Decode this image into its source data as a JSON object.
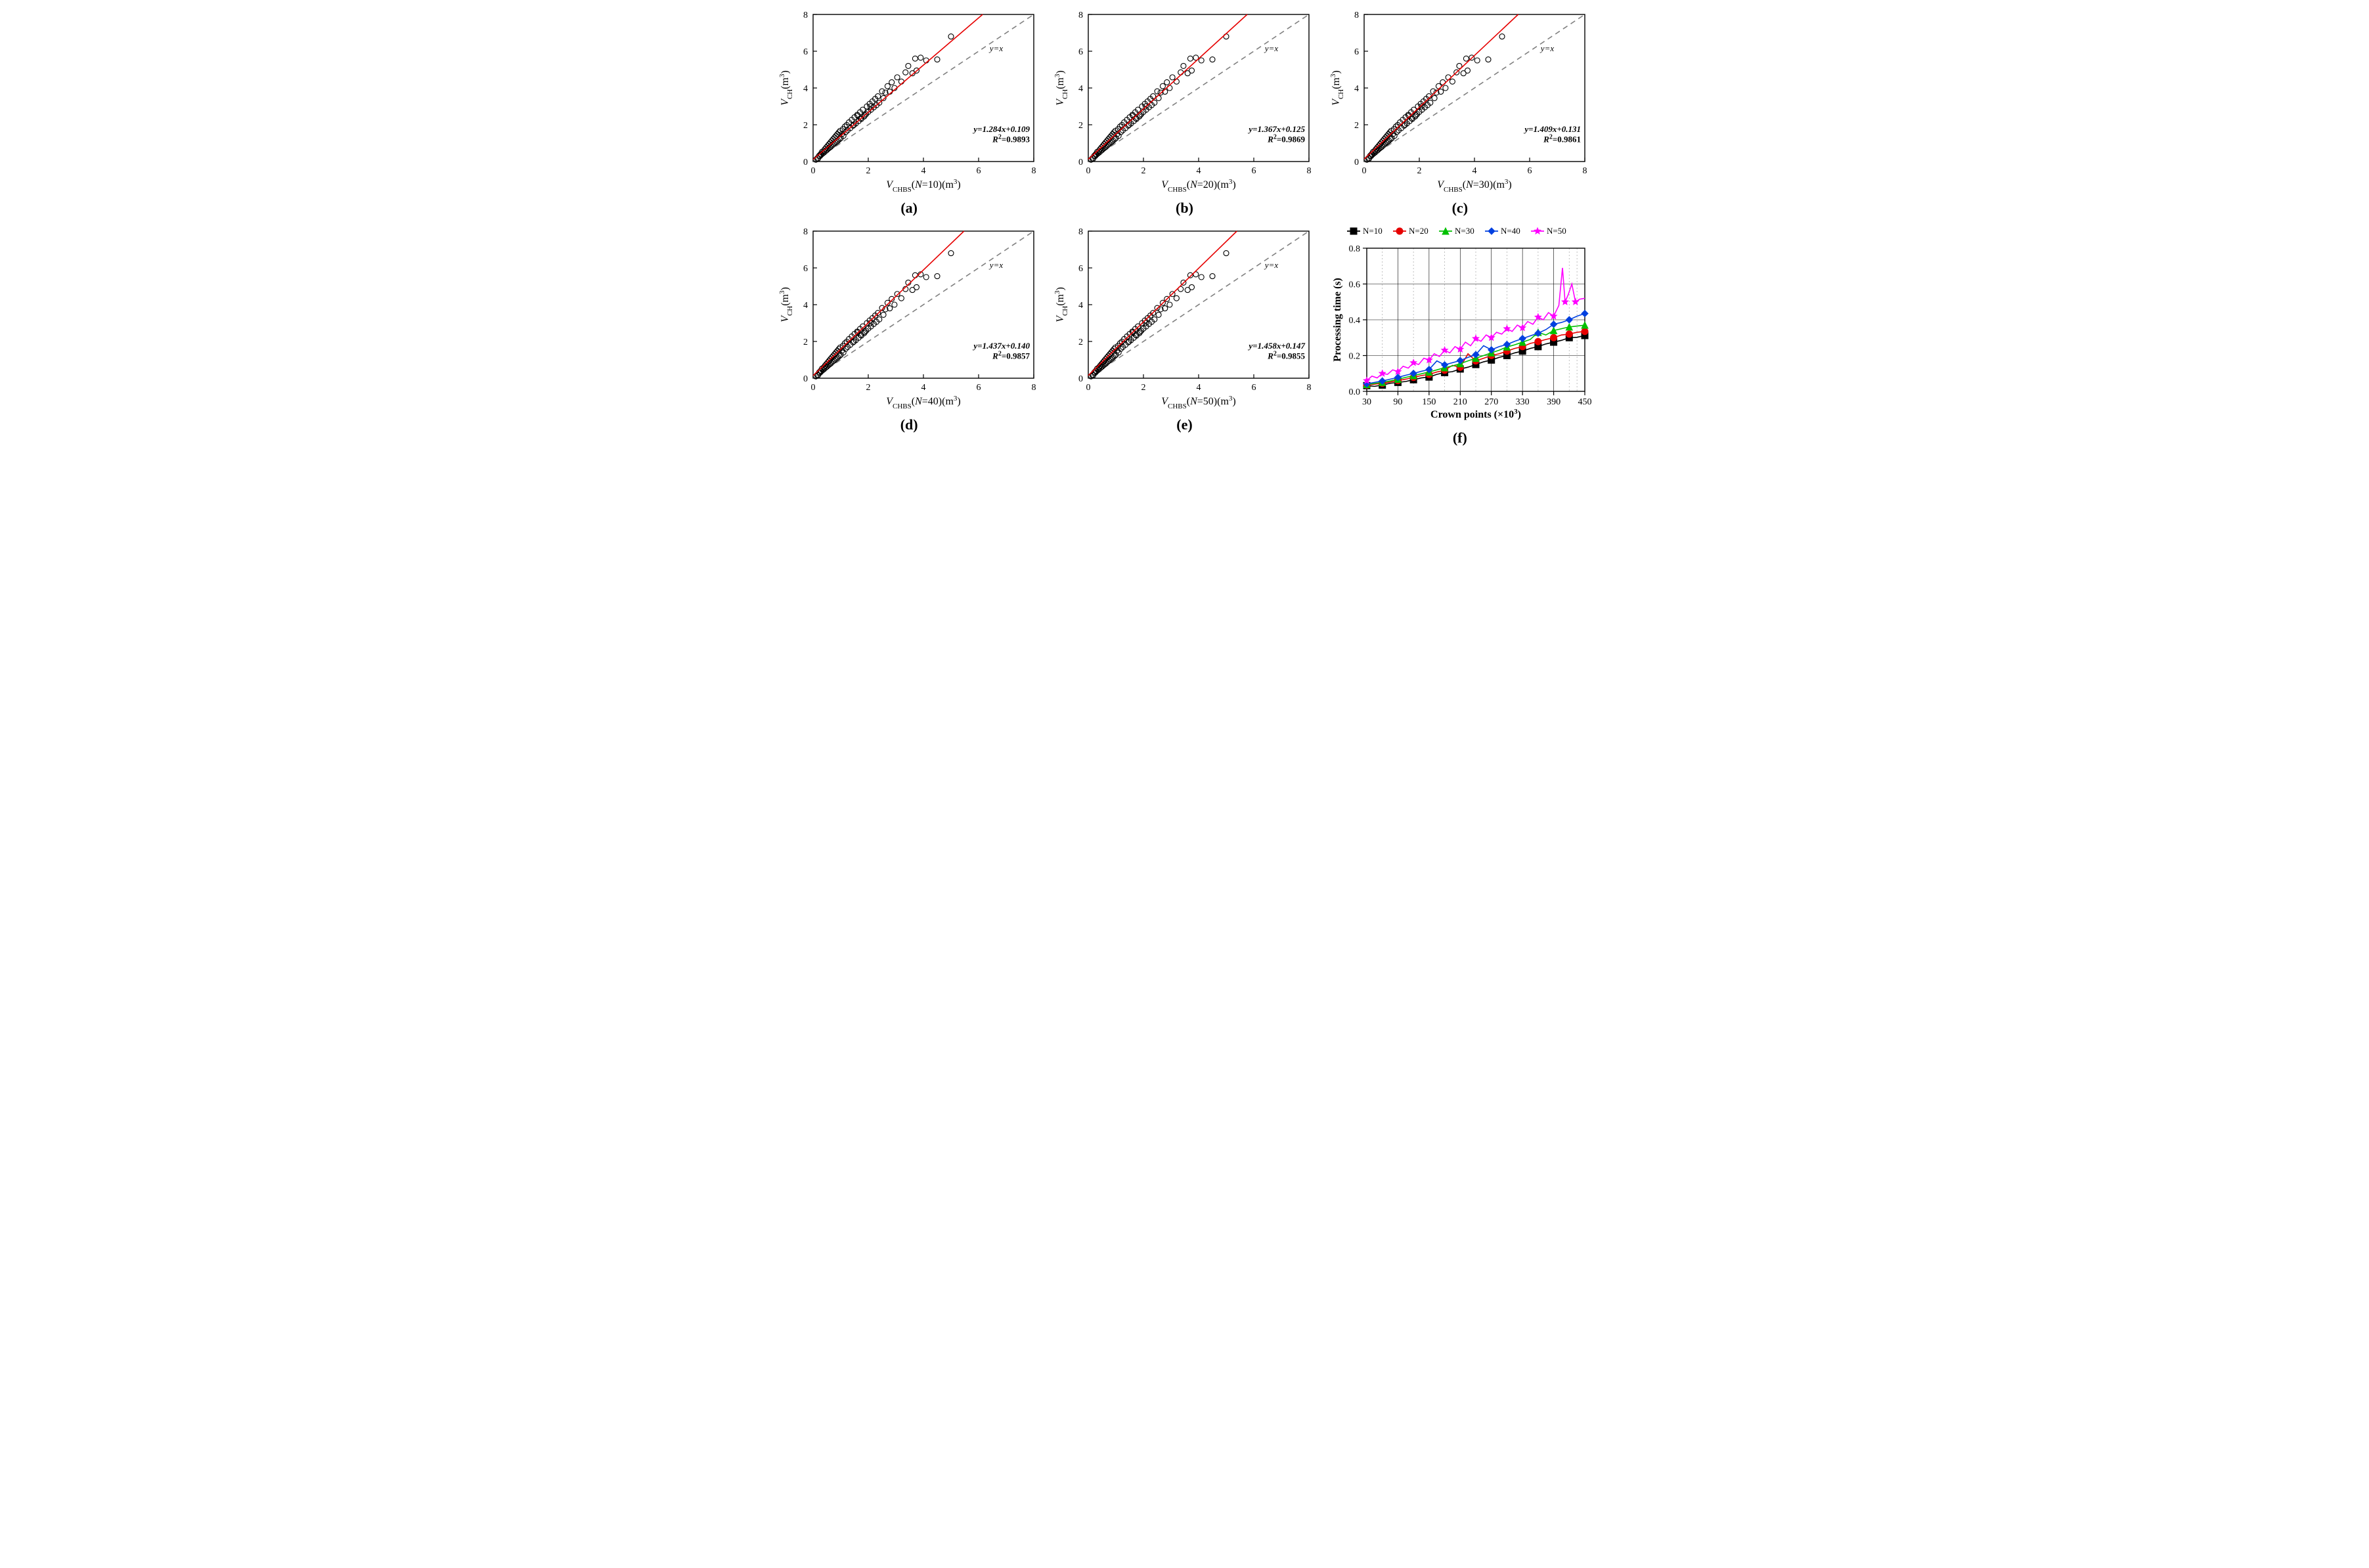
{
  "background_color": "#ffffff",
  "font_family": "Palatino Linotype",
  "scatter_panels": {
    "common": {
      "type": "scatter",
      "xlim": [
        0,
        8
      ],
      "ylim": [
        0,
        8
      ],
      "xtick_step": 2,
      "ytick_step": 2,
      "ylabel": "V_CH (m^3)",
      "diag_label": "y=x",
      "diag_color": "#808080",
      "diag_dash": "8 6",
      "fit_color": "#e60000",
      "marker_style": "open-circle",
      "marker_size": 4.0,
      "marker_stroke": "#000000",
      "axis_tick_fontsize": 14,
      "axis_title_fontsize": 16,
      "annot_fontsize": 13,
      "points": [
        [
          0.1,
          0.1
        ],
        [
          0.15,
          0.18
        ],
        [
          0.18,
          0.16
        ],
        [
          0.22,
          0.32
        ],
        [
          0.25,
          0.3
        ],
        [
          0.27,
          0.4
        ],
        [
          0.3,
          0.38
        ],
        [
          0.32,
          0.52
        ],
        [
          0.35,
          0.44
        ],
        [
          0.38,
          0.58
        ],
        [
          0.4,
          0.5
        ],
        [
          0.43,
          0.68
        ],
        [
          0.45,
          0.57
        ],
        [
          0.48,
          0.77
        ],
        [
          0.5,
          0.63
        ],
        [
          0.53,
          0.86
        ],
        [
          0.55,
          0.7
        ],
        [
          0.58,
          0.95
        ],
        [
          0.6,
          0.76
        ],
        [
          0.63,
          1.04
        ],
        [
          0.65,
          0.82
        ],
        [
          0.68,
          1.13
        ],
        [
          0.7,
          0.89
        ],
        [
          0.73,
          1.22
        ],
        [
          0.75,
          0.95
        ],
        [
          0.78,
          1.31
        ],
        [
          0.8,
          1.02
        ],
        [
          0.83,
          1.4
        ],
        [
          0.85,
          1.08
        ],
        [
          0.88,
          1.49
        ],
        [
          0.9,
          1.14
        ],
        [
          0.93,
          1.58
        ],
        [
          0.95,
          1.21
        ],
        [
          0.98,
          1.67
        ],
        [
          1.0,
          1.27
        ],
        [
          1.05,
          1.5
        ],
        [
          1.08,
          1.76
        ],
        [
          1.1,
          1.4
        ],
        [
          1.15,
          1.9
        ],
        [
          1.18,
          1.6
        ],
        [
          1.22,
          1.99
        ],
        [
          1.25,
          1.7
        ],
        [
          1.3,
          2.13
        ],
        [
          1.35,
          1.82
        ],
        [
          1.4,
          2.27
        ],
        [
          1.45,
          1.95
        ],
        [
          1.48,
          2.0
        ],
        [
          1.5,
          2.41
        ],
        [
          1.55,
          2.07
        ],
        [
          1.6,
          2.54
        ],
        [
          1.62,
          2.5
        ],
        [
          1.65,
          2.2
        ],
        [
          1.7,
          2.68
        ],
        [
          1.72,
          2.35
        ],
        [
          1.75,
          2.32
        ],
        [
          1.8,
          2.82
        ],
        [
          1.85,
          2.45
        ],
        [
          1.88,
          2.52
        ],
        [
          1.92,
          2.58
        ],
        [
          1.95,
          3.0
        ],
        [
          2.0,
          2.7
        ],
        [
          2.05,
          3.14
        ],
        [
          2.08,
          3.0
        ],
        [
          2.1,
          2.82
        ],
        [
          2.15,
          3.27
        ],
        [
          2.2,
          2.95
        ],
        [
          2.25,
          3.41
        ],
        [
          2.3,
          3.07
        ],
        [
          2.35,
          3.55
        ],
        [
          2.4,
          3.2
        ],
        [
          2.5,
          3.82
        ],
        [
          2.55,
          3.45
        ],
        [
          2.62,
          3.75
        ],
        [
          2.7,
          4.1
        ],
        [
          2.78,
          3.8
        ],
        [
          2.85,
          4.31
        ],
        [
          2.95,
          4.0
        ],
        [
          3.05,
          4.58
        ],
        [
          3.2,
          4.35
        ],
        [
          3.35,
          4.85
        ],
        [
          3.45,
          5.2
        ],
        [
          3.6,
          4.8
        ],
        [
          3.7,
          5.6
        ],
        [
          3.75,
          4.95
        ],
        [
          3.9,
          5.65
        ],
        [
          4.1,
          5.5
        ],
        [
          4.5,
          5.55
        ],
        [
          5.0,
          6.8
        ]
      ]
    },
    "panels": [
      {
        "id": "a",
        "N": 10,
        "xlabel": "V_CHBS (N=10)(m^3)",
        "fit_slope": 1.284,
        "fit_intercept": 0.109,
        "r2": 0.9893,
        "equation": "y=1.284x+0.109",
        "r2_text": "R²=0.9893"
      },
      {
        "id": "b",
        "N": 20,
        "xlabel": "V_CHBS (N=20)(m^3)",
        "fit_slope": 1.367,
        "fit_intercept": 0.125,
        "r2": 0.9869,
        "equation": "y=1.367x+0.125",
        "r2_text": "R²=0.9869"
      },
      {
        "id": "c",
        "N": 30,
        "xlabel": "V_CHBS (N=30)(m^3)",
        "fit_slope": 1.409,
        "fit_intercept": 0.131,
        "r2": 0.9861,
        "equation": "y=1.409x+0.131",
        "r2_text": "R²=0.9861"
      },
      {
        "id": "d",
        "N": 40,
        "xlabel": "V_CHBS (N=40)(m^3)",
        "fit_slope": 1.437,
        "fit_intercept": 0.14,
        "r2": 0.9857,
        "equation": "y=1.437x+0.140",
        "r2_text": "R²=0.9857"
      },
      {
        "id": "e",
        "N": 50,
        "xlabel": "V_CHBS (N=50)(m^3)",
        "fit_slope": 1.458,
        "fit_intercept": 0.147,
        "r2": 0.9855,
        "equation": "y=1.458x+0.147",
        "r2_text": "R²=0.9855"
      }
    ]
  },
  "performance_panel": {
    "id": "f",
    "type": "line",
    "xlabel": "Crown points (×10^3)",
    "ylabel": "Processing time (s)",
    "xlim": [
      30,
      450
    ],
    "ylim": [
      0,
      0.8
    ],
    "xtick_step": 60,
    "ytick_step": 0.2,
    "major_vgrid": [
      30,
      90,
      150,
      210,
      270,
      330,
      390,
      450
    ],
    "minor_vgrid": [
      60,
      120,
      180,
      240,
      300,
      360,
      420,
      435
    ],
    "hgrid": [
      0,
      0.2,
      0.4,
      0.6,
      0.8
    ],
    "axis_title_fontsize": 16,
    "tick_fontsize": 14,
    "legend_fontsize": 13,
    "line_width": 1.6,
    "marker_size": 5,
    "series": [
      {
        "label": "N=10",
        "color": "#000000",
        "marker": "square",
        "points": [
          [
            30,
            0.032
          ],
          [
            45,
            0.028
          ],
          [
            60,
            0.035
          ],
          [
            75,
            0.045
          ],
          [
            90,
            0.05
          ],
          [
            105,
            0.055
          ],
          [
            120,
            0.065
          ],
          [
            135,
            0.075
          ],
          [
            150,
            0.08
          ],
          [
            165,
            0.095
          ],
          [
            180,
            0.105
          ],
          [
            195,
            0.11
          ],
          [
            210,
            0.125
          ],
          [
            225,
            0.135
          ],
          [
            240,
            0.15
          ],
          [
            255,
            0.165
          ],
          [
            270,
            0.175
          ],
          [
            285,
            0.19
          ],
          [
            300,
            0.2
          ],
          [
            315,
            0.215
          ],
          [
            330,
            0.225
          ],
          [
            345,
            0.24
          ],
          [
            360,
            0.25
          ],
          [
            375,
            0.265
          ],
          [
            390,
            0.275
          ],
          [
            405,
            0.285
          ],
          [
            420,
            0.3
          ],
          [
            435,
            0.302
          ],
          [
            450,
            0.312
          ]
        ]
      },
      {
        "label": "N=20",
        "color": "#e60000",
        "marker": "circle",
        "points": [
          [
            30,
            0.035
          ],
          [
            45,
            0.04
          ],
          [
            60,
            0.045
          ],
          [
            75,
            0.052
          ],
          [
            90,
            0.06
          ],
          [
            105,
            0.068
          ],
          [
            120,
            0.078
          ],
          [
            135,
            0.088
          ],
          [
            150,
            0.095
          ],
          [
            165,
            0.108
          ],
          [
            180,
            0.118
          ],
          [
            195,
            0.145
          ],
          [
            210,
            0.135
          ],
          [
            225,
            0.21
          ],
          [
            240,
            0.17
          ],
          [
            255,
            0.185
          ],
          [
            270,
            0.2
          ],
          [
            285,
            0.21
          ],
          [
            300,
            0.225
          ],
          [
            315,
            0.24
          ],
          [
            330,
            0.25
          ],
          [
            345,
            0.268
          ],
          [
            360,
            0.278
          ],
          [
            375,
            0.29
          ],
          [
            390,
            0.3
          ],
          [
            405,
            0.315
          ],
          [
            420,
            0.32
          ],
          [
            435,
            0.33
          ],
          [
            450,
            0.335
          ]
        ]
      },
      {
        "label": "N=30",
        "color": "#00c000",
        "marker": "triangle",
        "points": [
          [
            30,
            0.038
          ],
          [
            45,
            0.044
          ],
          [
            60,
            0.05
          ],
          [
            75,
            0.058
          ],
          [
            90,
            0.068
          ],
          [
            105,
            0.078
          ],
          [
            120,
            0.088
          ],
          [
            135,
            0.098
          ],
          [
            150,
            0.108
          ],
          [
            165,
            0.12
          ],
          [
            180,
            0.132
          ],
          [
            195,
            0.142
          ],
          [
            210,
            0.155
          ],
          [
            225,
            0.17
          ],
          [
            240,
            0.185
          ],
          [
            255,
            0.2
          ],
          [
            270,
            0.215
          ],
          [
            285,
            0.23
          ],
          [
            300,
            0.248
          ],
          [
            315,
            0.26
          ],
          [
            330,
            0.275
          ],
          [
            345,
            0.29
          ],
          [
            360,
            0.33
          ],
          [
            375,
            0.315
          ],
          [
            390,
            0.34
          ],
          [
            405,
            0.35
          ],
          [
            420,
            0.36
          ],
          [
            435,
            0.365
          ],
          [
            450,
            0.37
          ]
        ]
      },
      {
        "label": "N=40",
        "color": "#0040e0",
        "marker": "diamond",
        "points": [
          [
            30,
            0.042
          ],
          [
            45,
            0.05
          ],
          [
            60,
            0.058
          ],
          [
            75,
            0.068
          ],
          [
            90,
            0.078
          ],
          [
            105,
            0.09
          ],
          [
            120,
            0.1
          ],
          [
            135,
            0.112
          ],
          [
            150,
            0.122
          ],
          [
            165,
            0.17
          ],
          [
            180,
            0.148
          ],
          [
            195,
            0.16
          ],
          [
            210,
            0.172
          ],
          [
            225,
            0.19
          ],
          [
            240,
            0.205
          ],
          [
            255,
            0.255
          ],
          [
            270,
            0.232
          ],
          [
            285,
            0.25
          ],
          [
            300,
            0.262
          ],
          [
            315,
            0.28
          ],
          [
            330,
            0.295
          ],
          [
            345,
            0.31
          ],
          [
            360,
            0.325
          ],
          [
            375,
            0.345
          ],
          [
            390,
            0.375
          ],
          [
            405,
            0.385
          ],
          [
            420,
            0.4
          ],
          [
            435,
            0.42
          ],
          [
            450,
            0.435
          ]
        ]
      },
      {
        "label": "N=50",
        "color": "#ff00ff",
        "marker": "star",
        "points": [
          [
            30,
            0.06
          ],
          [
            40,
            0.085
          ],
          [
            50,
            0.075
          ],
          [
            60,
            0.1
          ],
          [
            70,
            0.095
          ],
          [
            80,
            0.12
          ],
          [
            90,
            0.11
          ],
          [
            100,
            0.14
          ],
          [
            110,
            0.13
          ],
          [
            120,
            0.16
          ],
          [
            130,
            0.15
          ],
          [
            140,
            0.185
          ],
          [
            150,
            0.175
          ],
          [
            160,
            0.21
          ],
          [
            170,
            0.195
          ],
          [
            180,
            0.23
          ],
          [
            190,
            0.215
          ],
          [
            200,
            0.25
          ],
          [
            210,
            0.235
          ],
          [
            220,
            0.275
          ],
          [
            230,
            0.255
          ],
          [
            240,
            0.295
          ],
          [
            250,
            0.28
          ],
          [
            260,
            0.315
          ],
          [
            270,
            0.3
          ],
          [
            280,
            0.33
          ],
          [
            290,
            0.32
          ],
          [
            300,
            0.35
          ],
          [
            310,
            0.335
          ],
          [
            320,
            0.37
          ],
          [
            330,
            0.355
          ],
          [
            340,
            0.39
          ],
          [
            350,
            0.375
          ],
          [
            360,
            0.415
          ],
          [
            370,
            0.4
          ],
          [
            380,
            0.44
          ],
          [
            390,
            0.42
          ],
          [
            400,
            0.48
          ],
          [
            407,
            0.69
          ],
          [
            412,
            0.5
          ],
          [
            418,
            0.54
          ],
          [
            425,
            0.6
          ],
          [
            432,
            0.5
          ],
          [
            440,
            0.515
          ],
          [
            450,
            0.52
          ]
        ]
      }
    ]
  },
  "panel_labels": {
    "a": "(a)",
    "b": "(b)",
    "c": "(c)",
    "d": "(d)",
    "e": "(e)",
    "f": "(f)"
  }
}
